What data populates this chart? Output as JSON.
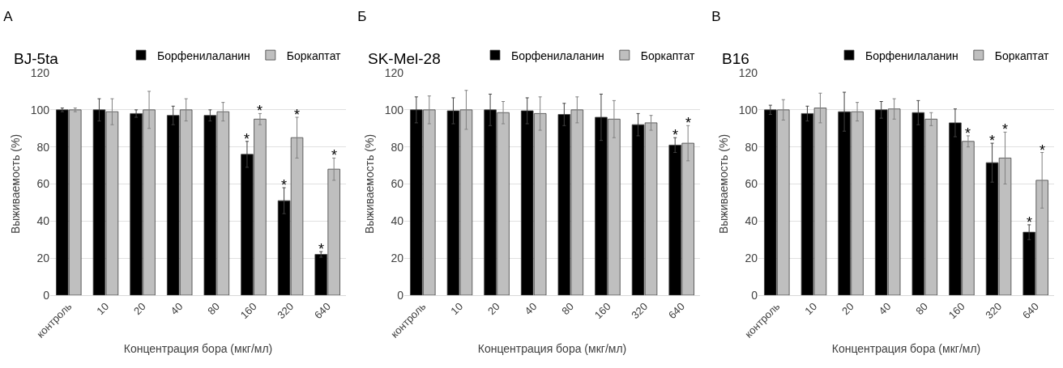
{
  "chart_data": [
    {
      "type": "bar",
      "title": "А",
      "subtitle": "BJ-5ta",
      "xlabel": "Концентрация бора (мкг/мл)",
      "ylabel": "Выживаемость (%)",
      "categories": [
        "контроль",
        "10",
        "20",
        "40",
        "80",
        "160",
        "320",
        "640"
      ],
      "ylim": [
        0,
        120
      ],
      "yticks": [
        0,
        20,
        40,
        60,
        80,
        100,
        120
      ],
      "grid": "y",
      "legend": "top right",
      "series": [
        {
          "name": "Борфенилаланин",
          "color": "#000000",
          "values": [
            100,
            100,
            98,
            97,
            97,
            76,
            51,
            22
          ],
          "errors": [
            1,
            6,
            2,
            5,
            3,
            7,
            7,
            1.5
          ],
          "value_labels": [
            null,
            null,
            null,
            null,
            null,
            "*",
            "*",
            "*"
          ]
        },
        {
          "name": "Боркаптат",
          "color": "#bfbfbf",
          "values": [
            100,
            99,
            100,
            100,
            99,
            95,
            85,
            68
          ],
          "errors": [
            1,
            7,
            10,
            6,
            5,
            3,
            11,
            6
          ],
          "value_labels": [
            null,
            null,
            null,
            null,
            null,
            "*",
            "*",
            "*"
          ]
        }
      ]
    },
    {
      "type": "bar",
      "title": "Б",
      "subtitle": "SK-Mel-28",
      "xlabel": "Концентрация бора (мкг/мл)",
      "ylabel": "Выживаемость (%)",
      "categories": [
        "контроль",
        "10",
        "20",
        "40",
        "80",
        "160",
        "320",
        "640"
      ],
      "ylim": [
        0,
        120
      ],
      "yticks": [
        0,
        20,
        40,
        60,
        80,
        100,
        120
      ],
      "grid": "y",
      "legend": "top right",
      "series": [
        {
          "name": "Борфенилаланин",
          "color": "#000000",
          "values": [
            100,
            99.5,
            100,
            99.5,
            97.5,
            96,
            92,
            81
          ],
          "errors": [
            7,
            7,
            8.5,
            7,
            6,
            12.5,
            6,
            4
          ],
          "value_labels": [
            null,
            null,
            null,
            null,
            null,
            null,
            null,
            "*"
          ]
        },
        {
          "name": "Боркаптат",
          "color": "#bfbfbf",
          "values": [
            100,
            100,
            98.5,
            98,
            100,
            95,
            93,
            82
          ],
          "errors": [
            7.5,
            10.5,
            6,
            9,
            7,
            10,
            4,
            9.5
          ],
          "value_labels": [
            null,
            null,
            null,
            null,
            null,
            null,
            null,
            "*"
          ]
        }
      ]
    },
    {
      "type": "bar",
      "title": "В",
      "subtitle": "B16",
      "xlabel": "Концентрация бора (мкг/мл)",
      "ylabel": "Выживаемость (%)",
      "categories": [
        "контроль",
        "10",
        "20",
        "40",
        "80",
        "160",
        "320",
        "640"
      ],
      "ylim": [
        0,
        120
      ],
      "yticks": [
        0,
        20,
        40,
        60,
        80,
        100,
        120
      ],
      "grid": "y",
      "legend": "top right",
      "series": [
        {
          "name": "Борфенилаланин",
          "color": "#000000",
          "values": [
            100,
            98,
            99,
            100,
            98.5,
            93,
            71.5,
            34
          ],
          "errors": [
            2.5,
            4,
            10.5,
            4.5,
            6.5,
            7.5,
            10.5,
            4
          ],
          "value_labels": [
            null,
            null,
            null,
            null,
            null,
            null,
            "*",
            "*"
          ]
        },
        {
          "name": "Боркаптат",
          "color": "#bfbfbf",
          "values": [
            100,
            101,
            99,
            100.5,
            95,
            83,
            74,
            62
          ],
          "errors": [
            5.5,
            8,
            5,
            5.5,
            3.5,
            3,
            14,
            15
          ],
          "value_labels": [
            null,
            null,
            null,
            null,
            null,
            "*",
            "*",
            "*"
          ]
        }
      ]
    }
  ]
}
